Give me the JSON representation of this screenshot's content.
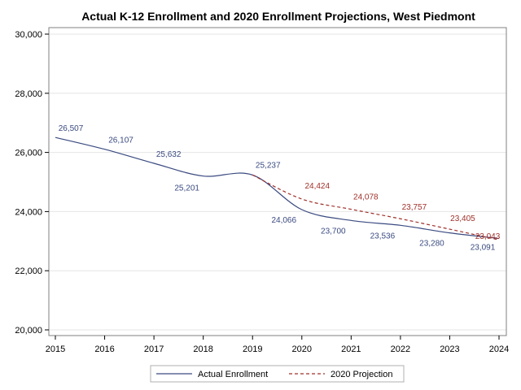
{
  "chart_data": {
    "type": "line",
    "title": "Actual K-12 Enrollment and 2020 Enrollment Projections, West Piedmont",
    "xlabel": "",
    "ylabel": "",
    "xlim": [
      2015,
      2024
    ],
    "ylim": [
      20000,
      30000
    ],
    "x_ticks": [
      "2015",
      "2016",
      "2017",
      "2018",
      "2019",
      "2020",
      "2021",
      "2022",
      "2023",
      "2024"
    ],
    "y_ticks": [
      "20,000",
      "22,000",
      "24,000",
      "26,000",
      "28,000",
      "30,000"
    ],
    "y_tick_values": [
      20000,
      22000,
      24000,
      26000,
      28000,
      30000
    ],
    "grid": "horizontal",
    "legend_position": "bottom",
    "series": [
      {
        "name": "Actual Enrollment",
        "color": "#3a4a80",
        "style": "solid",
        "x": [
          2015,
          2016,
          2017,
          2018,
          2019,
          2020,
          2021,
          2022,
          2023,
          2024
        ],
        "values": [
          26507,
          26107,
          25632,
          25201,
          25237,
          24066,
          23700,
          23536,
          23280,
          23091
        ],
        "labels": [
          "26,507",
          "26,107",
          "25,632",
          "25,201",
          "25,237",
          "24,066",
          "23,700",
          "23,536",
          "23,280",
          "23,091"
        ]
      },
      {
        "name": "2020 Projection",
        "color": "#a0302a",
        "style": "dashed",
        "x": [
          2019,
          2020,
          2021,
          2022,
          2023,
          2024
        ],
        "values": [
          25237,
          24424,
          24078,
          23757,
          23405,
          23043
        ],
        "labels": [
          "",
          "24,424",
          "24,078",
          "23,757",
          "23,405",
          "23,043"
        ]
      }
    ]
  }
}
